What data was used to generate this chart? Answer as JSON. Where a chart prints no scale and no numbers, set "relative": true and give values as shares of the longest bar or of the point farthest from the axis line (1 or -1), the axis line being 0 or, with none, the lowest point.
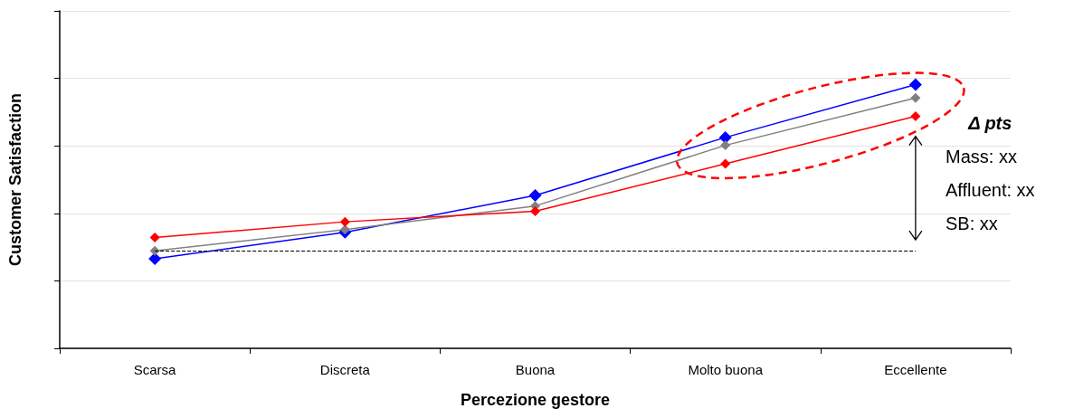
{
  "chart_data": {
    "type": "line",
    "xlabel": "Percezione gestore",
    "ylabel": "Customer Satisfaction",
    "categories": [
      "Scarsa",
      "Discreta",
      "Buona",
      "Molto buona",
      "Eccellente"
    ],
    "relative": true,
    "grid": "y",
    "marker": "diamond",
    "line_style": "solid",
    "series": [
      {
        "color": "#0000ff",
        "values": [
          0.34,
          0.44,
          0.58,
          0.8,
          1
        ]
      },
      {
        "color": "#808080",
        "values": [
          0.37,
          0.45,
          0.54,
          0.77,
          0.95
        ]
      },
      {
        "color": "#ff0000",
        "values": [
          0.42,
          0.48,
          0.52,
          0.7,
          0.88
        ]
      }
    ],
    "ref_lines": [
      {
        "axis": "y",
        "value": 0.37,
        "color": "#000000",
        "line_style": "dashed"
      }
    ],
    "annotations": [
      "Δ pts",
      "Mass: xx",
      "Affluent: xx",
      "SB: xx"
    ]
  }
}
